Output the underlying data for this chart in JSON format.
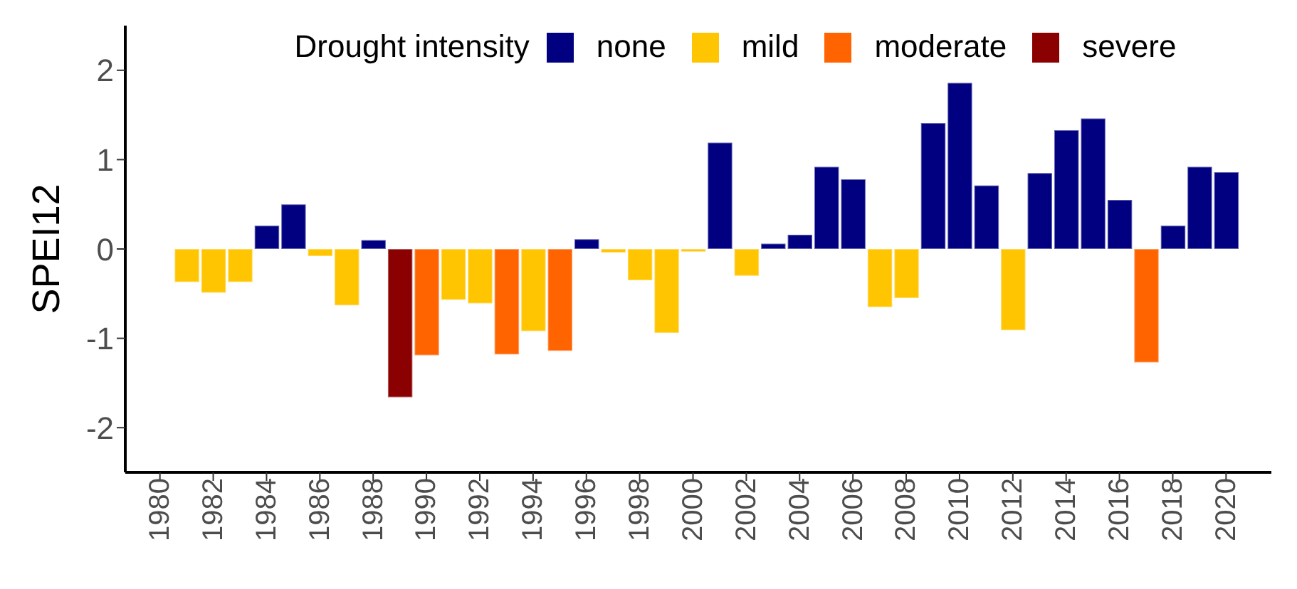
{
  "chart_data": {
    "type": "bar",
    "ylabel": "SPEI12",
    "legend_title": "Drought intensity",
    "legend": "top",
    "grid": false,
    "x": [
      1981,
      1982,
      1983,
      1984,
      1985,
      1986,
      1987,
      1988,
      1989,
      1990,
      1991,
      1992,
      1993,
      1994,
      1995,
      1996,
      1997,
      1998,
      1999,
      2000,
      2001,
      2002,
      2003,
      2004,
      2005,
      2006,
      2007,
      2008,
      2009,
      2010,
      2011,
      2012,
      2013,
      2014,
      2015,
      2016,
      2017,
      2018,
      2019,
      2020
    ],
    "xlim": [
      1978.7,
      2021.7
    ],
    "xticks": [
      1980,
      1982,
      1984,
      1986,
      1988,
      1990,
      1992,
      1994,
      1996,
      1998,
      2000,
      2002,
      2004,
      2006,
      2008,
      2010,
      2012,
      2014,
      2016,
      2018,
      2020
    ],
    "ylim": [
      -2.5,
      2.5
    ],
    "yticks": [
      -2,
      -1,
      0,
      1,
      2
    ],
    "series": [
      {
        "name": "none",
        "color": "#000080",
        "values": [
          null,
          null,
          null,
          0.26,
          0.5,
          null,
          null,
          0.1,
          null,
          null,
          null,
          null,
          null,
          null,
          null,
          0.11,
          null,
          null,
          null,
          null,
          1.19,
          null,
          0.06,
          0.16,
          0.92,
          0.78,
          null,
          null,
          1.41,
          1.86,
          0.71,
          null,
          0.85,
          1.33,
          1.46,
          0.55,
          null,
          0.26,
          0.92,
          0.86
        ]
      },
      {
        "name": "mild",
        "color": "#ffc500",
        "values": [
          -0.37,
          -0.49,
          -0.37,
          null,
          null,
          -0.08,
          -0.63,
          null,
          null,
          null,
          -0.57,
          -0.61,
          null,
          -0.92,
          null,
          null,
          -0.04,
          -0.35,
          -0.94,
          -0.03,
          null,
          -0.3,
          null,
          null,
          null,
          null,
          -0.65,
          -0.55,
          null,
          null,
          null,
          -0.91,
          null,
          null,
          null,
          null,
          null,
          null,
          null,
          null
        ]
      },
      {
        "name": "moderate",
        "color": "#ff6400",
        "values": [
          null,
          null,
          null,
          null,
          null,
          null,
          null,
          null,
          null,
          -1.19,
          null,
          null,
          -1.18,
          null,
          -1.14,
          null,
          null,
          null,
          null,
          null,
          null,
          null,
          null,
          null,
          null,
          null,
          null,
          null,
          null,
          null,
          null,
          null,
          null,
          null,
          null,
          null,
          -1.27,
          null,
          null,
          null
        ]
      },
      {
        "name": "severe",
        "color": "#8b0000",
        "values": [
          null,
          null,
          null,
          null,
          null,
          null,
          null,
          null,
          -1.66,
          null,
          null,
          null,
          null,
          null,
          null,
          null,
          null,
          null,
          null,
          null,
          null,
          null,
          null,
          null,
          null,
          null,
          null,
          null,
          null,
          null,
          null,
          null,
          null,
          null,
          null,
          null,
          null,
          null,
          null,
          null
        ]
      }
    ]
  }
}
